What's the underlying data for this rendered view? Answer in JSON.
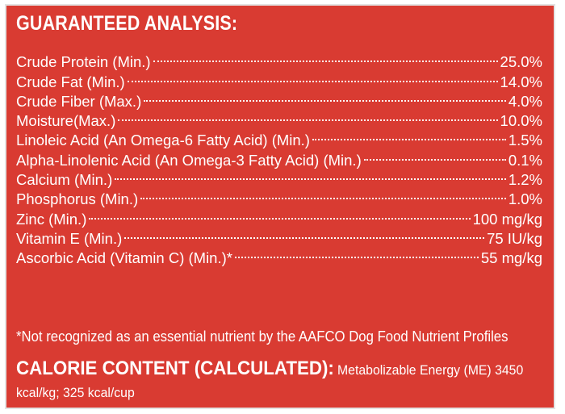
{
  "title": "GUARANTEED ANALYSIS:",
  "nutrients": [
    {
      "label": "Crude Protein (Min.)",
      "value": "25.0%"
    },
    {
      "label": "Crude Fat (Min.)",
      "value": "14.0%"
    },
    {
      "label": "Crude Fiber (Max.)",
      "value": "4.0%"
    },
    {
      "label": "Moisture(Max.)",
      "value": "10.0%"
    },
    {
      "label": "Linoleic Acid (An Omega-6 Fatty Acid) (Min.)",
      "value": "1.5%"
    },
    {
      "label": "Alpha-Linolenic Acid (An Omega-3 Fatty Acid) (Min.)",
      "value": "0.1%"
    },
    {
      "label": "Calcium (Min.)",
      "value": "1.2%"
    },
    {
      "label": "Phosphorus (Min.)",
      "value": "1.0%"
    },
    {
      "label": "Zinc (Min.)",
      "value": "100 mg/kg"
    },
    {
      "label": "Vitamin E (Min.)",
      "value": "75 IU/kg"
    },
    {
      "label": "Ascorbic Acid (Vitamin C) (Min.)*",
      "value": "55 mg/kg"
    }
  ],
  "footnote": "*Not recognized as an essential nutrient by the AAFCO Dog Food Nutrient Profiles",
  "calorie": {
    "heading": "CALORIE CONTENT (CALCULATED):",
    "text": "Metabolizable Energy (ME) 3450 kcal/kg; 325 kcal/cup"
  },
  "colors": {
    "background": "#d93b32",
    "text": "#ffffff",
    "border": "#e3e3e3"
  }
}
